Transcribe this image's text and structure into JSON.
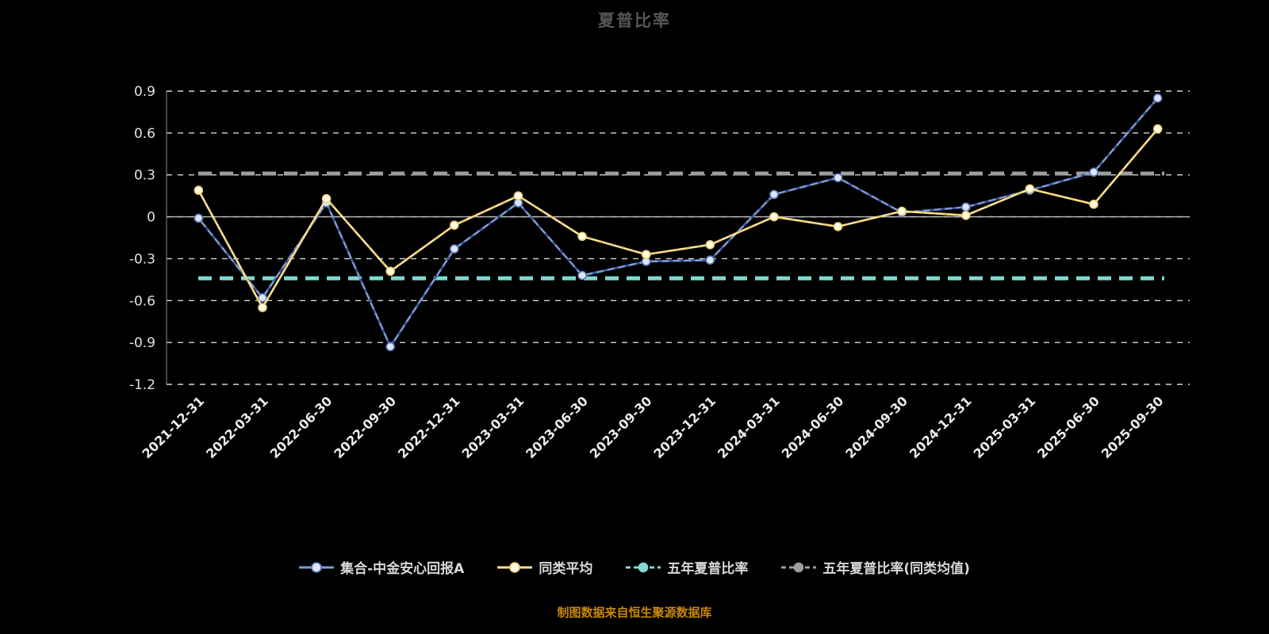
{
  "title": "夏普比率",
  "footer": {
    "note": "制图数据来自恒生聚源数据库",
    "color": "#c8870b"
  },
  "chart_data": {
    "type": "line",
    "title": "夏普比率",
    "xlabel": "",
    "ylabel": "",
    "ylim": [
      -1.2,
      0.9
    ],
    "y_ticks": [
      0.9,
      0.6,
      0.3,
      0,
      -0.3,
      -0.6,
      -0.9,
      -1.2
    ],
    "grid": true,
    "legend_position": "bottom",
    "categories": [
      "2021-12-31",
      "2022-03-31",
      "2022-06-30",
      "2022-09-30",
      "2022-12-31",
      "2023-03-31",
      "2023-06-30",
      "2023-09-30",
      "2023-12-31",
      "2024-03-31",
      "2024-06-30",
      "2024-09-30",
      "2024-12-31",
      "2025-03-31",
      "2025-06-30",
      "2025-09-30"
    ],
    "series": [
      {
        "name": "集合-中金安心回报A",
        "color": "#7e9bd2",
        "overlay_dash_color": "#33549e",
        "marker_fill": "#dde6f8",
        "marker_stroke": "#5b79c0",
        "values": [
          -0.01,
          -0.58,
          0.1,
          -0.93,
          -0.23,
          0.1,
          -0.42,
          -0.32,
          -0.31,
          0.16,
          0.28,
          0.03,
          0.07,
          0.19,
          0.32,
          0.85
        ]
      },
      {
        "name": "同类平均",
        "color": "#ffe39a",
        "overlay_dash_color": "#edc968",
        "marker_fill": "#fffbea",
        "marker_stroke": "#efce6e",
        "values": [
          0.19,
          -0.65,
          0.13,
          -0.39,
          -0.06,
          0.15,
          -0.14,
          -0.27,
          -0.2,
          0.0,
          -0.07,
          0.04,
          0.01,
          0.2,
          0.09,
          0.63
        ]
      }
    ],
    "reference_lines": [
      {
        "name": "五年夏普比率",
        "value": -0.44,
        "color": "#7fd9d2"
      },
      {
        "name": "五年夏普比率(同类均值)",
        "value": 0.31,
        "color": "#9e9e9e"
      }
    ]
  },
  "legend": {
    "items": [
      {
        "label": "集合-中金安心回报A",
        "marker": "ring",
        "line_color": "#7e9bd2",
        "fill": "#dde6f8",
        "stroke": "#5b79c0"
      },
      {
        "label": "同类平均",
        "marker": "ring",
        "line_color": "#ffe39a",
        "fill": "#fffbea",
        "stroke": "#efce6e"
      },
      {
        "label": "五年夏普比率",
        "marker": "dot",
        "line_color": "#7fd9d2",
        "fill": "#7fd9d2",
        "stroke": "#7fd9d2"
      },
      {
        "label": "五年夏普比率(同类均值)",
        "marker": "dot",
        "line_color": "#9e9e9e",
        "fill": "#9e9e9e",
        "stroke": "#9e9e9e"
      }
    ]
  },
  "style": {
    "gridline_color": "#efefef",
    "axis_line_color": "#bdbdbd",
    "y_tick_label_color": "#e3e3e3",
    "x_tick_label_color": "#ececec",
    "background": "#000000"
  }
}
